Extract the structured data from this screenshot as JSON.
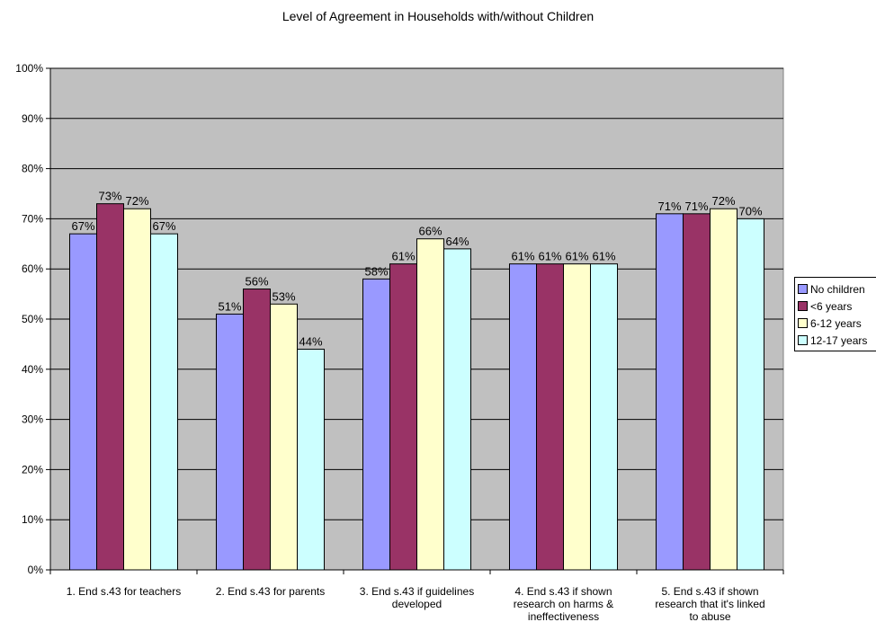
{
  "chart_data": {
    "type": "bar",
    "title": "Level of Agreement in Households with/without Children",
    "categories": [
      [
        "1. End s.43 for teachers"
      ],
      [
        "2. End s.43 for parents"
      ],
      [
        "3. End s.43 if guidelines",
        "developed"
      ],
      [
        "4. End s.43 if shown",
        "research on harms &",
        "ineffectiveness"
      ],
      [
        "5. End s.43 if shown",
        "research that it's linked",
        "to abuse"
      ]
    ],
    "series": [
      {
        "name": "No children",
        "color": "#9999FF",
        "values": [
          67,
          51,
          58,
          61,
          71
        ]
      },
      {
        "name": "<6 years",
        "color": "#993366",
        "values": [
          73,
          56,
          61,
          61,
          71
        ]
      },
      {
        "name": "6-12 years",
        "color": "#FFFFCC",
        "values": [
          72,
          53,
          66,
          61,
          72
        ]
      },
      {
        "name": "12-17 years",
        "color": "#CCFFFF",
        "values": [
          67,
          44,
          64,
          61,
          70
        ]
      }
    ],
    "value_suffix": "%",
    "ylim": [
      0,
      100
    ],
    "yticks": [
      0,
      10,
      20,
      30,
      40,
      50,
      60,
      70,
      80,
      90,
      100
    ],
    "ytick_labels": [
      "0%",
      "10%",
      "20%",
      "30%",
      "40%",
      "50%",
      "60%",
      "70%",
      "80%",
      "90%",
      "100%"
    ],
    "grid": true,
    "plot_background": "#C0C0C0",
    "legend_position": "right"
  }
}
